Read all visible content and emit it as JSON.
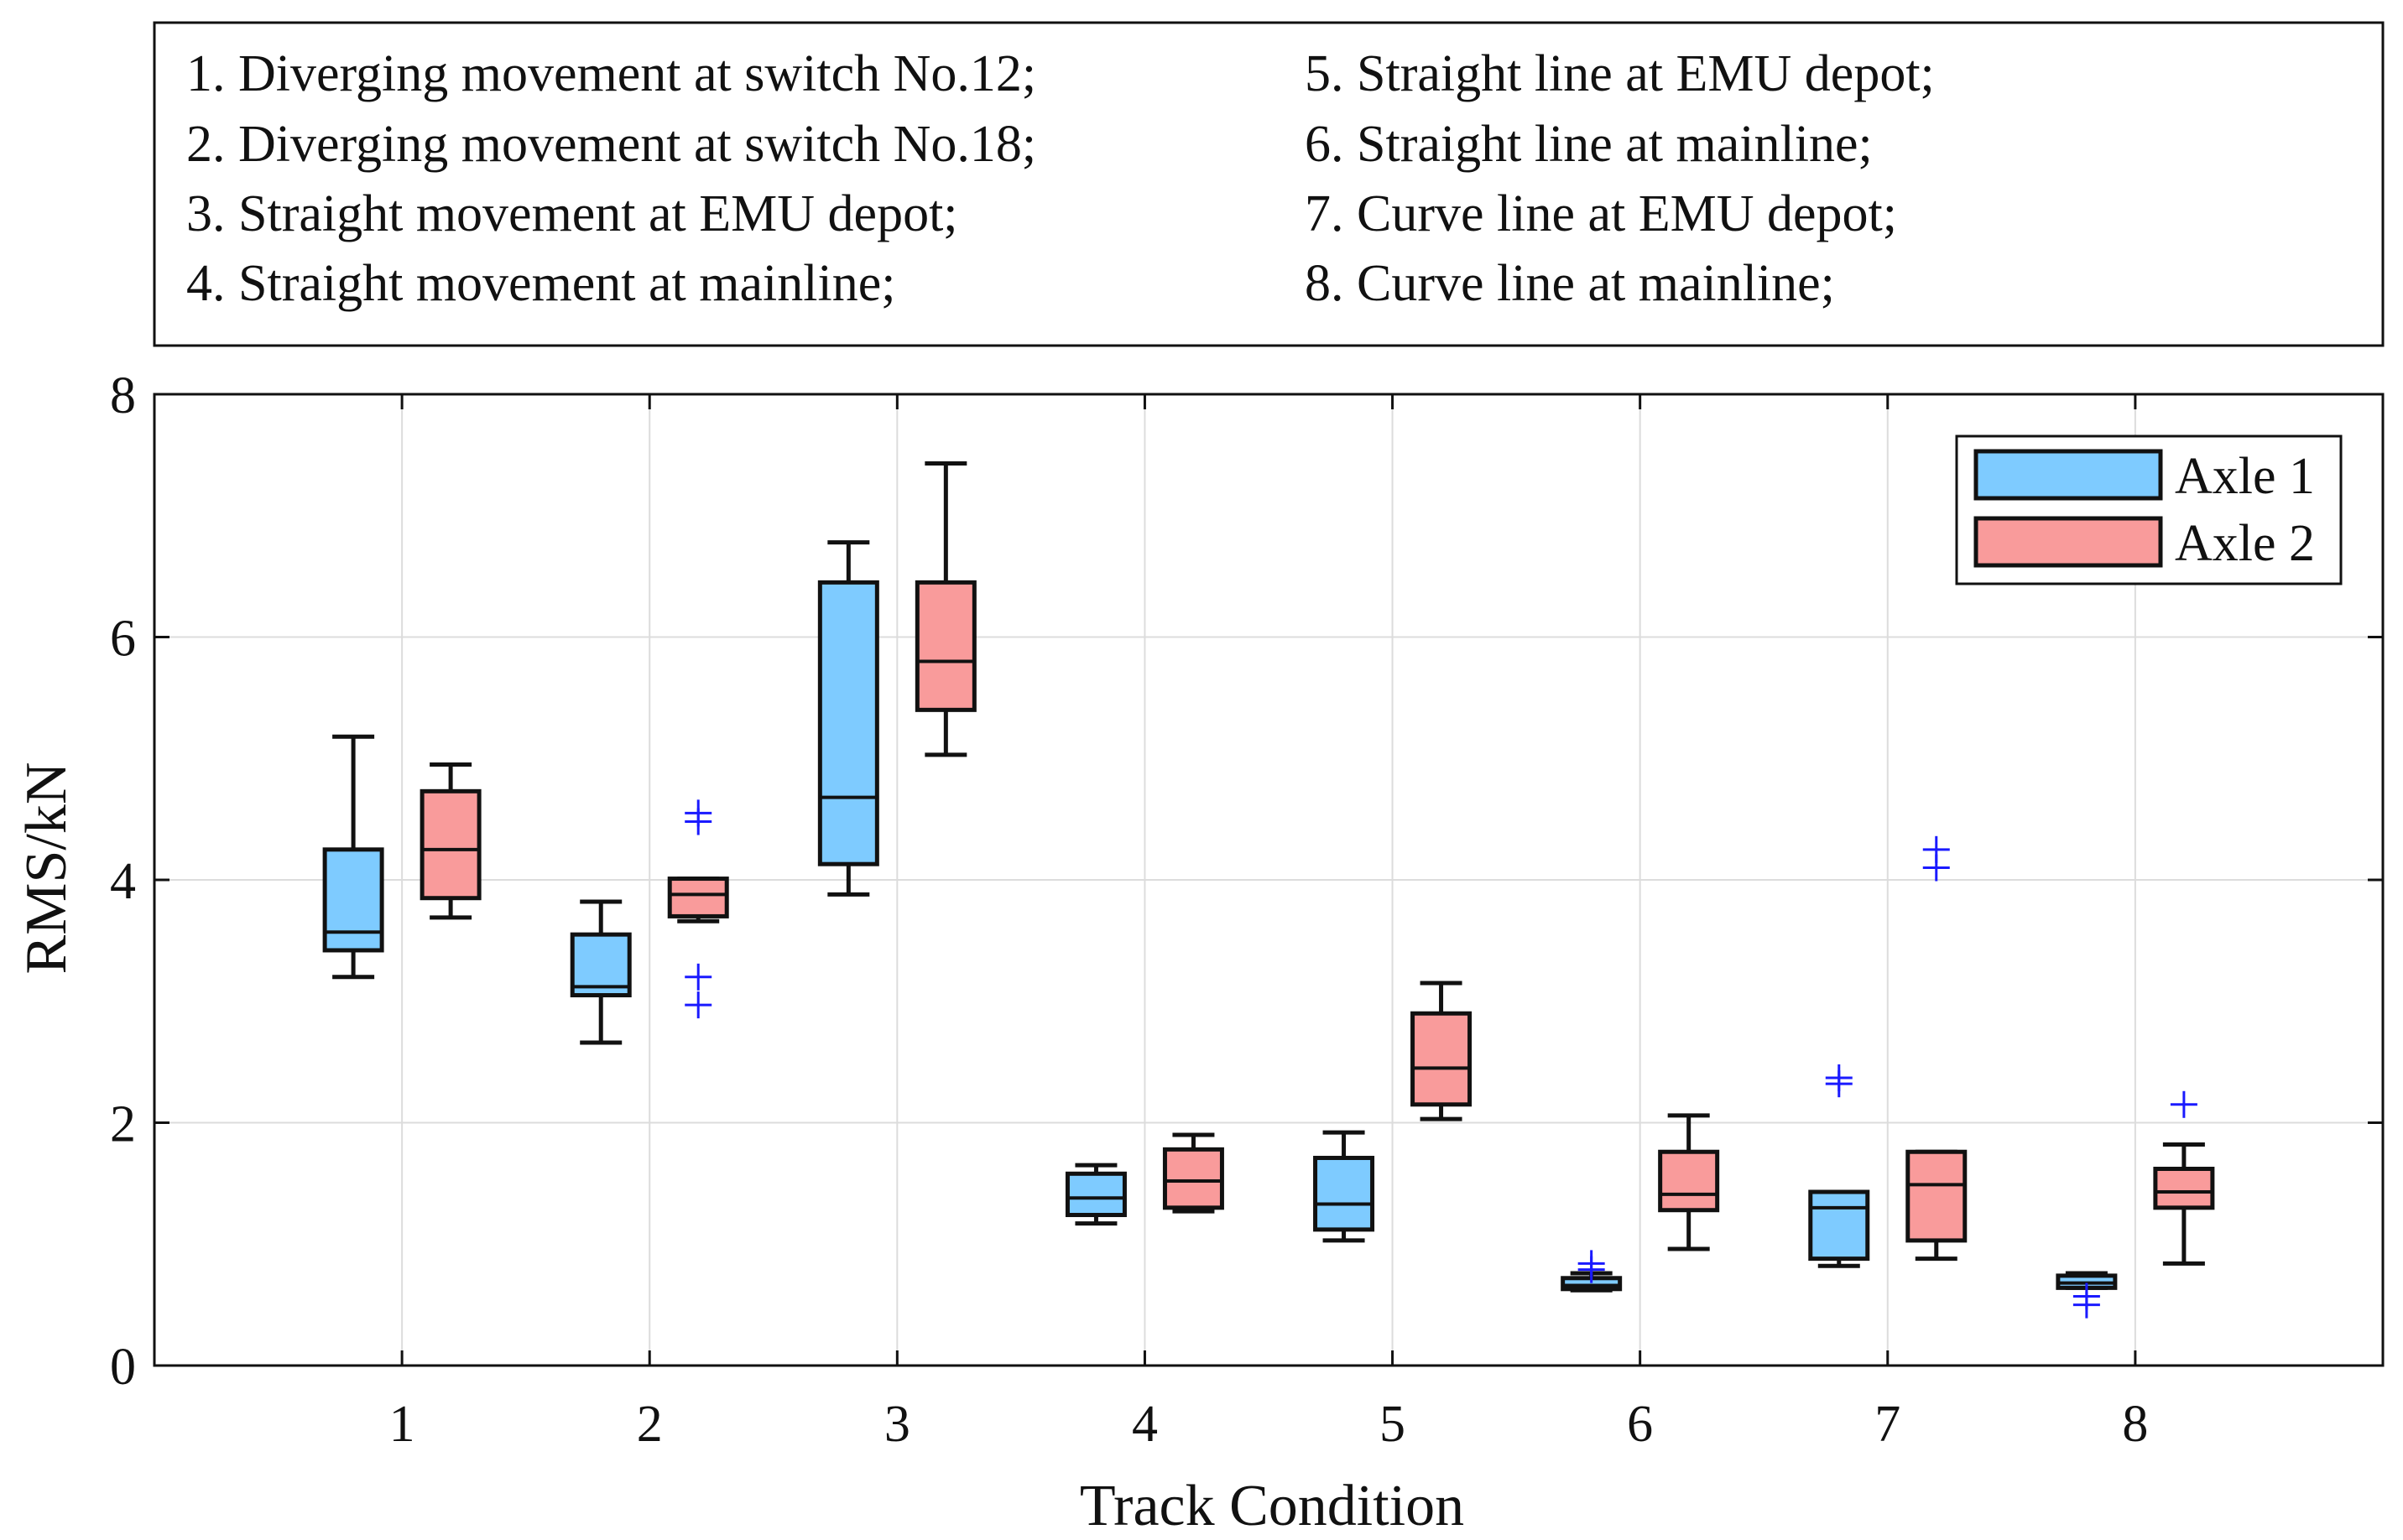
{
  "chart_data": {
    "type": "box",
    "description_box": {
      "left_column": [
        "1. Diverging movement at switch No.12;",
        "2. Diverging movement at switch No.18;",
        "3. Straight movement at EMU depot;",
        "4. Straight movement at mainline;"
      ],
      "right_column": [
        "5. Straight line at EMU depot;",
        "6. Straight line at mainline;",
        "7. Curve line at EMU depot;",
        "8. Curve line at mainline;"
      ]
    },
    "xlabel": "Track Condition",
    "ylabel": "RMS/kN",
    "ylim": [
      0,
      8
    ],
    "yticks": [
      0,
      2,
      4,
      6,
      8
    ],
    "categories": [
      "1",
      "2",
      "3",
      "4",
      "5",
      "6",
      "7",
      "8"
    ],
    "grid": true,
    "legend_position": "top-right",
    "series": [
      {
        "name": "Axle 1",
        "color": "#7ecbff",
        "boxes": [
          {
            "min": 3.2,
            "q1": 3.42,
            "median": 3.57,
            "q3": 4.25,
            "max": 5.18,
            "outliers": []
          },
          {
            "min": 2.66,
            "q1": 3.05,
            "median": 3.12,
            "q3": 3.55,
            "max": 3.82,
            "outliers": []
          },
          {
            "min": 3.88,
            "q1": 4.13,
            "median": 4.68,
            "q3": 6.45,
            "max": 6.78,
            "outliers": []
          },
          {
            "min": 1.17,
            "q1": 1.24,
            "median": 1.38,
            "q3": 1.58,
            "max": 1.65,
            "outliers": []
          },
          {
            "min": 1.03,
            "q1": 1.12,
            "median": 1.33,
            "q3": 1.71,
            "max": 1.92,
            "outliers": []
          },
          {
            "min": 0.62,
            "q1": 0.63,
            "median": 0.66,
            "q3": 0.72,
            "max": 0.76,
            "outliers": [
              0.79,
              0.84
            ]
          },
          {
            "min": 0.82,
            "q1": 0.88,
            "median": 1.3,
            "q3": 1.43,
            "max": 1.43,
            "outliers": [
              2.32,
              2.37
            ]
          },
          {
            "min": 0.64,
            "q1": 0.64,
            "median": 0.68,
            "q3": 0.74,
            "max": 0.76,
            "outliers": [
              0.5,
              0.57
            ]
          }
        ]
      },
      {
        "name": "Axle 2",
        "color": "#f99b9b",
        "boxes": [
          {
            "min": 3.69,
            "q1": 3.85,
            "median": 4.25,
            "q3": 4.73,
            "max": 4.95,
            "outliers": []
          },
          {
            "min": 3.66,
            "q1": 3.7,
            "median": 3.88,
            "q3": 4.01,
            "max": 4.01,
            "outliers": [
              2.97,
              3.2,
              4.48,
              4.55
            ]
          },
          {
            "min": 5.03,
            "q1": 5.4,
            "median": 5.8,
            "q3": 6.45,
            "max": 7.43,
            "outliers": []
          },
          {
            "min": 1.27,
            "q1": 1.3,
            "median": 1.52,
            "q3": 1.78,
            "max": 1.9,
            "outliers": []
          },
          {
            "min": 2.03,
            "q1": 2.15,
            "median": 2.45,
            "q3": 2.9,
            "max": 3.15,
            "outliers": []
          },
          {
            "min": 0.96,
            "q1": 1.28,
            "median": 1.41,
            "q3": 1.76,
            "max": 2.06,
            "outliers": []
          },
          {
            "min": 0.88,
            "q1": 1.03,
            "median": 1.49,
            "q3": 1.76,
            "max": 1.76,
            "outliers": [
              4.1,
              4.25
            ]
          },
          {
            "min": 0.84,
            "q1": 1.3,
            "median": 1.43,
            "q3": 1.62,
            "max": 1.82,
            "outliers": [
              2.15
            ]
          }
        ]
      }
    ]
  }
}
